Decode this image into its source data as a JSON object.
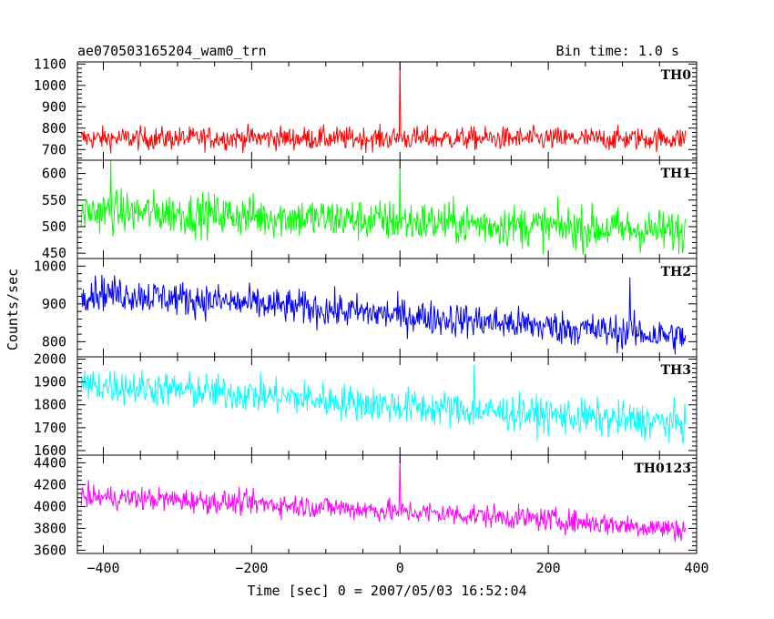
{
  "chart_data": {
    "type": "line",
    "title": "ae070503165204_wam0_trn",
    "subtitle": "Bin time: 1.0 s",
    "xlabel": "Time [sec] 0 = 2007/05/03 16:52:04",
    "ylabel": "Counts/sec",
    "xlim": [
      -435,
      400
    ],
    "xticks": [
      -400,
      -200,
      0,
      200,
      400
    ],
    "grid": false,
    "panels": [
      {
        "name": "TH0",
        "color": "#ff0000",
        "ylim": [
          650,
          1110
        ],
        "yticks": [
          700,
          800,
          900,
          1000,
          1100
        ],
        "x": [
          -400,
          -300,
          -200,
          -100,
          0,
          100,
          200,
          300,
          400
        ],
        "values": [
          752,
          752,
          755,
          752,
          752,
          752,
          750,
          750,
          752
        ],
        "noise": 38,
        "spikes": [
          [
            0,
            1110
          ]
        ]
      },
      {
        "name": "TH1",
        "color": "#00ff00",
        "ylim": [
          440,
          625
        ],
        "yticks": [
          450,
          500,
          550,
          600
        ],
        "x": [
          -400,
          -300,
          -200,
          -100,
          0,
          100,
          200,
          300,
          400
        ],
        "values": [
          528,
          525,
          520,
          515,
          510,
          505,
          500,
          495,
          490
        ],
        "noise": 28,
        "spikes": [
          [
            0,
            625
          ],
          [
            -390,
            625
          ]
        ]
      },
      {
        "name": "TH2",
        "color": "#0000ff",
        "ylim": [
          760,
          1020
        ],
        "yticks": [
          800,
          900,
          1000
        ],
        "x": [
          -400,
          -300,
          -200,
          -100,
          0,
          100,
          200,
          300,
          400
        ],
        "values": [
          930,
          915,
          900,
          885,
          870,
          855,
          840,
          825,
          810
        ],
        "noise": 32,
        "spikes": [
          [
            310,
            970
          ]
        ]
      },
      {
        "name": "TH3",
        "color": "#00ffff",
        "ylim": [
          1580,
          2010
        ],
        "yticks": [
          1600,
          1700,
          1800,
          1900,
          2000
        ],
        "x": [
          -400,
          -300,
          -200,
          -100,
          0,
          100,
          200,
          300,
          400
        ],
        "values": [
          1885,
          1865,
          1845,
          1820,
          1795,
          1775,
          1755,
          1735,
          1715
        ],
        "noise": 55,
        "spikes": [
          [
            100,
            1975
          ]
        ]
      },
      {
        "name": "TH0123",
        "color": "#ff00ff",
        "ylim": [
          3570,
          4470
        ],
        "yticks": [
          3600,
          3800,
          4000,
          4200,
          4400
        ],
        "x": [
          -400,
          -300,
          -200,
          -100,
          0,
          100,
          200,
          300,
          400
        ],
        "values": [
          4085,
          4060,
          4030,
          3995,
          3955,
          3920,
          3880,
          3830,
          3780
        ],
        "noise": 75,
        "spikes": [
          [
            0,
            4470
          ]
        ]
      }
    ]
  }
}
